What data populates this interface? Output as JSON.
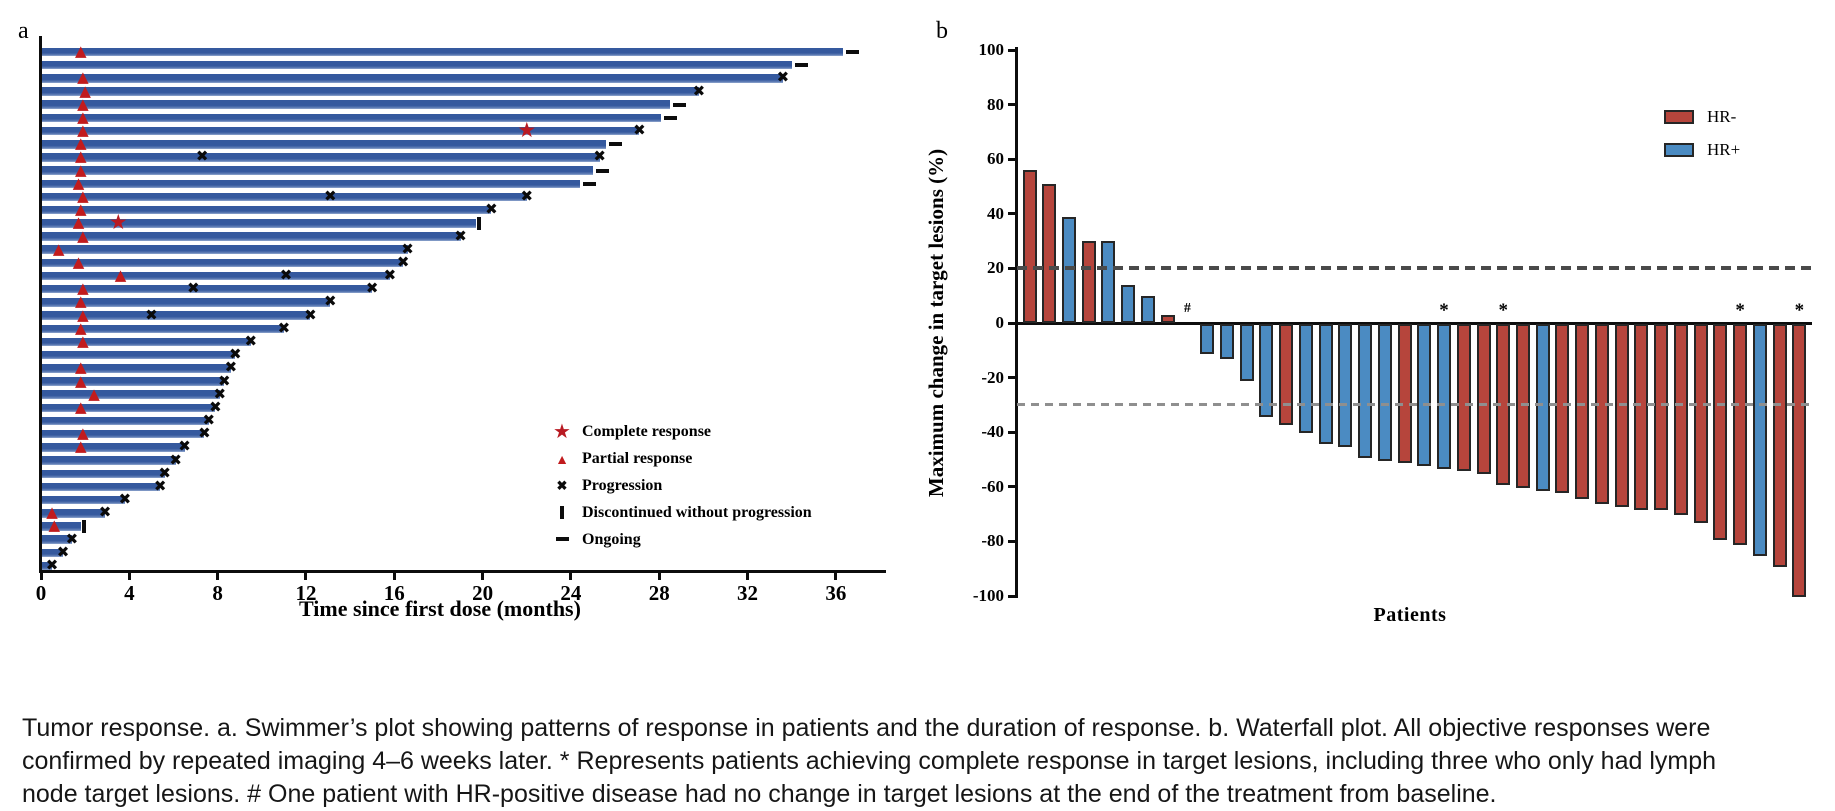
{
  "figure": {
    "panel_a_label": "a",
    "panel_b_label": "b"
  },
  "colors": {
    "swimmer_bar_blue": "#35599e",
    "response_red": "#c11b1d",
    "hr_negative_red": "#b6453c",
    "hr_positive_blue": "#4b8bc2",
    "bar_outline": "#262626",
    "dashed_dark": "#4a4a4a",
    "dashed_light": "#8f8f8f"
  },
  "panel_a": {
    "xlabel": "Time since first dose (months)",
    "legend": {
      "items": [
        {
          "label": "Complete response",
          "glyph": "★"
        },
        {
          "label": "Partial response",
          "glyph": "▲"
        },
        {
          "label": "Progression",
          "glyph": "✖"
        },
        {
          "label": "Discontinued without progression",
          "glyph": "|"
        },
        {
          "label": "Ongoing",
          "glyph": "-"
        }
      ]
    }
  },
  "panel_b": {
    "ylabel": "Maximum change in target lesions (%)",
    "xlabel": "Patients",
    "legend": [
      {
        "label": "HR-",
        "group": "HR-"
      },
      {
        "label": "HR+",
        "group": "HR+"
      }
    ],
    "annotations": {
      "asterisk": "*",
      "hash": "#"
    }
  },
  "caption": {
    "lines": [
      "Tumor response. a. Swimmer’s plot showing patterns of response in patients and the duration of response. b. Waterfall plot. All objective responses were",
      "confirmed by repeated imaging 4–6 weeks later. * Represents patients achieving complete response in target lesions, including three who only had lymph",
      "node target lesions. # One patient with HR-positive disease had no change in target lesions at the end of the treatment from baseline."
    ]
  },
  "chart_data": [
    {
      "type": "bar",
      "subtype": "swimmer",
      "title": "a",
      "xlabel": "Time since first dose (months)",
      "xlim": [
        0,
        38.2
      ],
      "xticks": [
        0,
        4,
        8,
        12,
        16,
        20,
        24,
        28,
        32,
        36
      ],
      "marker_glyphs": {
        "complete_response": "★",
        "partial_response": "▲",
        "progression": "✖"
      },
      "marker_legend": [
        "Complete response",
        "Partial response",
        "Progression",
        "Discontinued without progression",
        "Ongoing"
      ],
      "patients": [
        {
          "d": 36.3,
          "pr": 1.8,
          "end": "ongoing"
        },
        {
          "d": 34.0,
          "end": "ongoing"
        },
        {
          "d": 33.6,
          "pr": 1.9,
          "end": "progression"
        },
        {
          "d": 29.8,
          "pr": 2.0,
          "end": "progression"
        },
        {
          "d": 28.5,
          "pr": 1.9,
          "end": "ongoing"
        },
        {
          "d": 28.1,
          "pr": 1.9,
          "end": "ongoing"
        },
        {
          "d": 27.1,
          "pr": 1.9,
          "cr": 22.0,
          "end": "progression"
        },
        {
          "d": 25.6,
          "pr": 1.8,
          "end": "ongoing"
        },
        {
          "d": 25.3,
          "pr": 1.8,
          "mx": [
            7.3
          ],
          "end": "progression"
        },
        {
          "d": 25.0,
          "pr": 1.8,
          "end": "ongoing"
        },
        {
          "d": 24.4,
          "pr": 1.7,
          "end": "ongoing"
        },
        {
          "d": 22.0,
          "pr": 1.9,
          "mx": [
            13.1
          ],
          "end": "progression"
        },
        {
          "d": 20.4,
          "pr": 1.8,
          "end": "progression"
        },
        {
          "d": 19.7,
          "pr": 1.7,
          "cr": 3.5,
          "end": "discontinued"
        },
        {
          "d": 19.0,
          "pr": 1.9,
          "end": "progression"
        },
        {
          "d": 16.6,
          "pr": 0.8,
          "end": "progression"
        },
        {
          "d": 16.4,
          "pr": 1.7,
          "end": "progression"
        },
        {
          "d": 15.8,
          "pr": 3.6,
          "mx": [
            11.1
          ],
          "end": "progression"
        },
        {
          "d": 15.0,
          "pr": 1.9,
          "mx": [
            6.9
          ],
          "end": "progression"
        },
        {
          "d": 13.1,
          "pr": 1.8,
          "end": "progression"
        },
        {
          "d": 12.2,
          "pr": 1.9,
          "mx": [
            5.0
          ],
          "end": "progression"
        },
        {
          "d": 11.0,
          "pr": 1.8,
          "end": "progression"
        },
        {
          "d": 9.5,
          "pr": 1.9,
          "end": "progression"
        },
        {
          "d": 8.8,
          "end": "progression"
        },
        {
          "d": 8.6,
          "pr": 1.8,
          "end": "progression"
        },
        {
          "d": 8.3,
          "pr": 1.8,
          "end": "progression"
        },
        {
          "d": 8.1,
          "pr": 2.4,
          "end": "progression"
        },
        {
          "d": 7.9,
          "pr": 1.8,
          "end": "progression"
        },
        {
          "d": 7.6,
          "end": "progression"
        },
        {
          "d": 7.4,
          "pr": 1.9,
          "end": "progression"
        },
        {
          "d": 6.5,
          "pr": 1.8,
          "end": "progression"
        },
        {
          "d": 6.1,
          "end": "progression"
        },
        {
          "d": 5.6,
          "end": "progression"
        },
        {
          "d": 5.4,
          "end": "progression"
        },
        {
          "d": 3.8,
          "end": "progression"
        },
        {
          "d": 2.9,
          "pr": 0.5,
          "end": "progression"
        },
        {
          "d": 1.8,
          "pr": 0.6,
          "end": "discontinued"
        },
        {
          "d": 1.4,
          "end": "progression"
        },
        {
          "d": 1.0,
          "end": "progression"
        },
        {
          "d": 0.5,
          "end": "progression"
        }
      ]
    },
    {
      "type": "bar",
      "subtype": "waterfall",
      "title": "b",
      "xlabel": "Patients",
      "ylabel": "Maximum change in target lesions (%)",
      "ylim": [
        -100,
        100
      ],
      "yticks": [
        100,
        80,
        60,
        40,
        20,
        0,
        -20,
        -40,
        -60,
        -80,
        -100
      ],
      "reference_lines": [
        {
          "v": 20,
          "style": "dark"
        },
        {
          "v": -30,
          "style": "light"
        }
      ],
      "legend_position": "top-right",
      "groups": {
        "HR-": "#b6453c",
        "HR+": "#4b8bc2"
      },
      "bars": [
        {
          "v": 56,
          "g": "HR-"
        },
        {
          "v": 51,
          "g": "HR-"
        },
        {
          "v": 39,
          "g": "HR+"
        },
        {
          "v": 30,
          "g": "HR-"
        },
        {
          "v": 30,
          "g": "HR+"
        },
        {
          "v": 14,
          "g": "HR+"
        },
        {
          "v": 10,
          "g": "HR+"
        },
        {
          "v": 3,
          "g": "HR-"
        },
        {
          "v": 0,
          "g": "HR+",
          "ann": "#"
        },
        {
          "v": -11,
          "g": "HR+"
        },
        {
          "v": -13,
          "g": "HR+"
        },
        {
          "v": -21,
          "g": "HR+"
        },
        {
          "v": -34,
          "g": "HR+"
        },
        {
          "v": -37,
          "g": "HR-"
        },
        {
          "v": -40,
          "g": "HR+"
        },
        {
          "v": -44,
          "g": "HR+"
        },
        {
          "v": -45,
          "g": "HR+"
        },
        {
          "v": -49,
          "g": "HR+"
        },
        {
          "v": -50,
          "g": "HR+"
        },
        {
          "v": -51,
          "g": "HR-"
        },
        {
          "v": -52,
          "g": "HR+"
        },
        {
          "v": -53,
          "g": "HR+",
          "ann": "*"
        },
        {
          "v": -54,
          "g": "HR-"
        },
        {
          "v": -55,
          "g": "HR-"
        },
        {
          "v": -59,
          "g": "HR-",
          "ann": "*"
        },
        {
          "v": -60,
          "g": "HR-"
        },
        {
          "v": -61,
          "g": "HR+"
        },
        {
          "v": -62,
          "g": "HR-"
        },
        {
          "v": -64,
          "g": "HR-"
        },
        {
          "v": -66,
          "g": "HR-"
        },
        {
          "v": -67,
          "g": "HR-"
        },
        {
          "v": -68,
          "g": "HR-"
        },
        {
          "v": -68,
          "g": "HR-"
        },
        {
          "v": -70,
          "g": "HR-"
        },
        {
          "v": -73,
          "g": "HR-"
        },
        {
          "v": -79,
          "g": "HR-"
        },
        {
          "v": -81,
          "g": "HR-",
          "ann": "*"
        },
        {
          "v": -85,
          "g": "HR+"
        },
        {
          "v": -89,
          "g": "HR-"
        },
        {
          "v": -100,
          "g": "HR-",
          "ann": "*"
        }
      ]
    }
  ]
}
